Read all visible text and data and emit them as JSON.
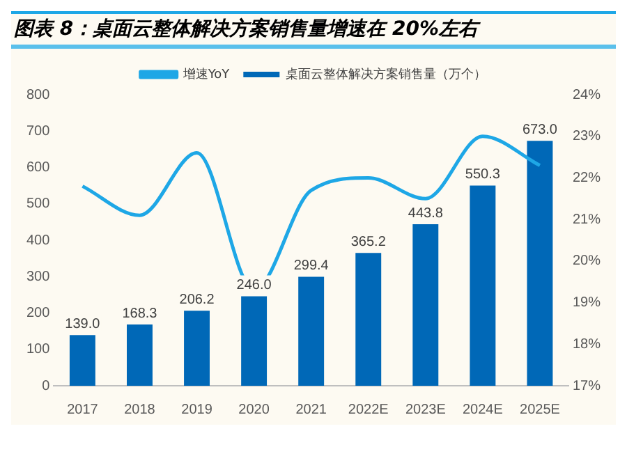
{
  "chart_data": {
    "type": "bar",
    "title": "图表 8：桌面云整体解决方案销售量增速在 20%左右",
    "categories": [
      "2017",
      "2018",
      "2019",
      "2020",
      "2021",
      "2022E",
      "2023E",
      "2024E",
      "2025E"
    ],
    "series": [
      {
        "name": "桌面云整体解决方案销售量（万个）",
        "color": "#0068b7",
        "values": [
          139.0,
          168.3,
          206.2,
          246.0,
          299.4,
          365.2,
          443.8,
          550.3,
          673.0
        ],
        "value_labels": [
          "139.0",
          "168.3",
          "206.2",
          "246.0",
          "299.4",
          "365.2",
          "443.8",
          "550.3",
          "673.0"
        ]
      },
      {
        "name": "增速YoY",
        "type": "line",
        "axis": "y2",
        "color": "#1ea7e6",
        "values": [
          21.8,
          21.1,
          22.6,
          19.3,
          21.7,
          22.0,
          21.5,
          23.0,
          22.3
        ]
      }
    ],
    "ylim": [
      0,
      800
    ],
    "yticks": [
      0,
      100,
      200,
      300,
      400,
      500,
      600,
      700,
      800
    ],
    "y2lim": [
      17,
      24
    ],
    "y2ticks": [
      {
        "value": 17,
        "label": "17%"
      },
      {
        "value": 18,
        "label": "18%"
      },
      {
        "value": 19,
        "label": "19%"
      },
      {
        "value": 20,
        "label": "20%"
      },
      {
        "value": 21,
        "label": "21%"
      },
      {
        "value": 22,
        "label": "22%"
      },
      {
        "value": 23,
        "label": "23%"
      },
      {
        "value": 24,
        "label": "24%"
      }
    ],
    "grid": false,
    "legend": "top",
    "marker": "none"
  }
}
